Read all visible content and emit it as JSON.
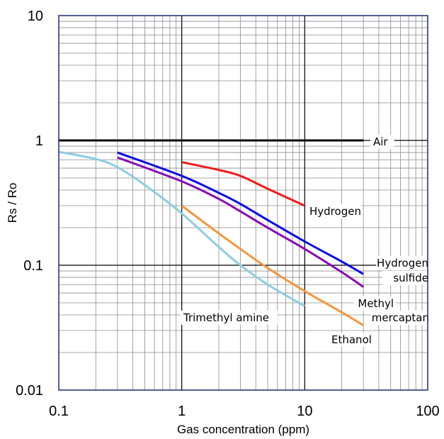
{
  "chart_data": {
    "type": "line",
    "x_scale": "log",
    "y_scale": "log",
    "xlim": [
      0.1,
      100
    ],
    "ylim": [
      0.01,
      10
    ],
    "grid": true,
    "xlabel": "Gas concentration (ppm)",
    "ylabel": "Rs / Ro",
    "x_ticks": [
      "0.1",
      "1",
      "10",
      "100"
    ],
    "y_ticks": [
      "0.01",
      "0.1",
      "1",
      "10"
    ],
    "series": [
      {
        "name": "Air",
        "label_lines": [
          "Air"
        ],
        "color": "#000000",
        "x": [
          0.1,
          30
        ],
        "y": [
          1,
          1
        ]
      },
      {
        "name": "Hydrogen",
        "label_lines": [
          "Hydrogen"
        ],
        "color": "#ee1c1c",
        "x": [
          1,
          2,
          3,
          5,
          10
        ],
        "y": [
          0.67,
          0.58,
          0.52,
          0.41,
          0.3
        ]
      },
      {
        "name": "Hydrogen sulfide",
        "label_lines": [
          "Hydrogen",
          "sulfide"
        ],
        "color": "#0a0ae6",
        "x": [
          0.3,
          1,
          2,
          3,
          5,
          10,
          20,
          30
        ],
        "y": [
          0.8,
          0.52,
          0.38,
          0.31,
          0.23,
          0.155,
          0.107,
          0.085
        ]
      },
      {
        "name": "Methyl mercaptan",
        "label_lines": [
          "Methyl",
          "mercaptan"
        ],
        "color": "#8a0ab4",
        "x": [
          0.3,
          1,
          2,
          3,
          5,
          10,
          20,
          30
        ],
        "y": [
          0.73,
          0.47,
          0.34,
          0.27,
          0.2,
          0.135,
          0.088,
          0.067
        ]
      },
      {
        "name": "Ethanol",
        "label_lines": [
          "Ethanol"
        ],
        "color": "#f5963c",
        "x": [
          1,
          2,
          3,
          5,
          10,
          20,
          30
        ],
        "y": [
          0.3,
          0.18,
          0.135,
          0.095,
          0.062,
          0.042,
          0.033
        ]
      },
      {
        "name": "Trimethyl amine",
        "label_lines": [
          "Trimethyl amine"
        ],
        "color": "#8ccde2",
        "x": [
          0.1,
          0.2,
          0.3,
          0.5,
          1,
          2,
          3,
          5,
          10
        ],
        "y": [
          0.81,
          0.71,
          0.61,
          0.44,
          0.26,
          0.14,
          0.1,
          0.07,
          0.047
        ]
      }
    ]
  }
}
